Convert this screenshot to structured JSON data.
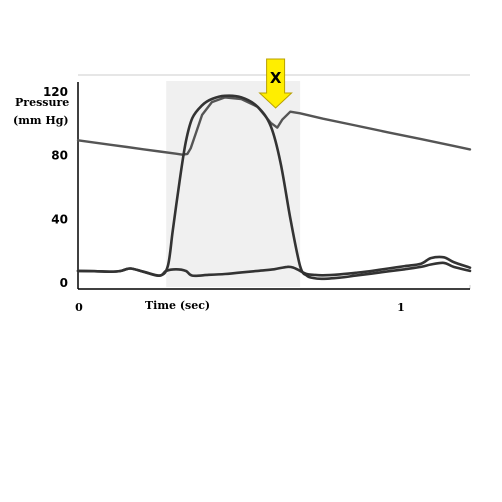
{
  "chart_data": {
    "type": "line",
    "ylabel_line1": "Pressure",
    "ylabel_line2": "(mm Hg)",
    "xlabel": "Time (sec)",
    "ylim": [
      0,
      120
    ],
    "xlim": [
      0,
      1.2
    ],
    "y_ticks": [
      "0",
      "40",
      "80",
      "120"
    ],
    "x_ticks": [
      "0",
      "1"
    ],
    "grid": false,
    "shaded_interval": [
      0.27,
      0.68
    ],
    "series": [
      {
        "color": "#555555",
        "x": [
          0.0,
          0.05,
          0.1,
          0.15,
          0.2,
          0.25,
          0.3,
          0.32,
          0.335,
          0.345,
          0.36,
          0.38,
          0.41,
          0.45,
          0.5,
          0.55,
          0.59,
          0.61,
          0.625,
          0.65,
          0.68,
          0.75,
          0.85,
          0.95,
          1.05,
          1.15,
          1.2
        ],
        "values": [
          89,
          87.6,
          86.2,
          84.8,
          83.4,
          82,
          80.6,
          80,
          80.5,
          84,
          93,
          105,
          113,
          116,
          115,
          110,
          100,
          97,
          102,
          107,
          106,
          102.6,
          98.3,
          94,
          89.8,
          85.5,
          83.3
        ]
      },
      {
        "color": "#333333",
        "x": [
          0.0,
          0.05,
          0.1,
          0.13,
          0.16,
          0.2,
          0.25,
          0.275,
          0.29,
          0.31,
          0.33,
          0.35,
          0.38,
          0.41,
          0.45,
          0.5,
          0.55,
          0.59,
          0.62,
          0.65,
          0.68,
          0.7,
          0.72,
          0.75,
          0.8,
          0.85,
          0.9,
          0.95,
          1.0,
          1.05,
          1.08,
          1.12,
          1.15,
          1.2
        ],
        "values": [
          7,
          6.8,
          6.5,
          6.9,
          8.5,
          6.5,
          4,
          10,
          32,
          62,
          88,
          103,
          111,
          115,
          117,
          116,
          110,
          98,
          75,
          40,
          10,
          4,
          2.5,
          2,
          2.7,
          4,
          5.3,
          6.7,
          8,
          9.5,
          11,
          12,
          9.5,
          7
        ]
      },
      {
        "color": "#333333",
        "x": [
          0.0,
          0.05,
          0.1,
          0.13,
          0.16,
          0.2,
          0.25,
          0.27,
          0.3,
          0.33,
          0.35,
          0.4,
          0.45,
          0.5,
          0.55,
          0.6,
          0.64,
          0.66,
          0.68,
          0.7,
          0.72,
          0.75,
          0.8,
          0.85,
          0.9,
          0.95,
          1.0,
          1.05,
          1.08,
          1.12,
          1.15,
          1.2
        ],
        "values": [
          7,
          6.8,
          6.5,
          6.9,
          8.5,
          6.5,
          4,
          7,
          8,
          7,
          4,
          4.5,
          5,
          6,
          7,
          8,
          9.5,
          9,
          7,
          5,
          4.5,
          4.2,
          4.8,
          5.8,
          7,
          8.5,
          10,
          11.5,
          15,
          15.5,
          12.5,
          9
        ]
      }
    ],
    "annotations": [
      {
        "text": "X",
        "x": 0.605,
        "color": "#ffee00"
      }
    ]
  }
}
